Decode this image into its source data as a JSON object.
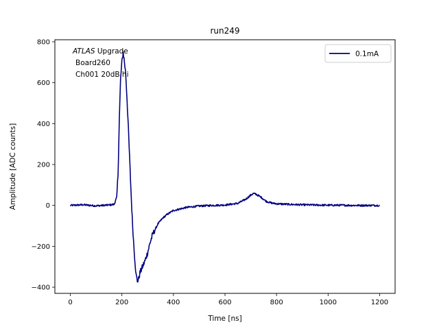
{
  "chart_data": {
    "type": "line",
    "title": "run249",
    "xlabel": "Time [ns]",
    "ylabel": "Amplitude [ADC counts]",
    "xlim": [
      -60,
      1260
    ],
    "ylim": [
      -430,
      810
    ],
    "xticks": [
      0,
      200,
      400,
      600,
      800,
      1000,
      1200
    ],
    "yticks": [
      -400,
      -200,
      0,
      200,
      400,
      600,
      800
    ],
    "grid": false,
    "legend_position": "top-right",
    "annotation": {
      "line1_italic": "ATLAS",
      "line1_rest": " Upgrade",
      "line2": "Board260",
      "line3": "Ch001 20dB hi"
    },
    "series": [
      {
        "name": "0.1mA",
        "color": "#00007f",
        "points": [
          [
            0,
            0
          ],
          [
            50,
            3
          ],
          [
            100,
            -2
          ],
          [
            150,
            2
          ],
          [
            170,
            5
          ],
          [
            180,
            40
          ],
          [
            185,
            150
          ],
          [
            190,
            420
          ],
          [
            195,
            620
          ],
          [
            200,
            700
          ],
          [
            205,
            750
          ],
          [
            210,
            700
          ],
          [
            215,
            640
          ],
          [
            220,
            520
          ],
          [
            225,
            380
          ],
          [
            230,
            230
          ],
          [
            235,
            80
          ],
          [
            240,
            -60
          ],
          [
            245,
            -170
          ],
          [
            250,
            -260
          ],
          [
            255,
            -340
          ],
          [
            260,
            -370
          ],
          [
            265,
            -360
          ],
          [
            270,
            -330
          ],
          [
            280,
            -300
          ],
          [
            290,
            -270
          ],
          [
            300,
            -230
          ],
          [
            310,
            -180
          ],
          [
            320,
            -140
          ],
          [
            340,
            -90
          ],
          [
            360,
            -60
          ],
          [
            380,
            -40
          ],
          [
            400,
            -25
          ],
          [
            450,
            -10
          ],
          [
            500,
            -3
          ],
          [
            550,
            0
          ],
          [
            600,
            2
          ],
          [
            650,
            10
          ],
          [
            680,
            30
          ],
          [
            700,
            50
          ],
          [
            710,
            58
          ],
          [
            720,
            55
          ],
          [
            740,
            40
          ],
          [
            760,
            20
          ],
          [
            780,
            12
          ],
          [
            800,
            8
          ],
          [
            850,
            5
          ],
          [
            900,
            3
          ],
          [
            950,
            2
          ],
          [
            1000,
            1
          ],
          [
            1050,
            1
          ],
          [
            1100,
            0
          ],
          [
            1150,
            0
          ],
          [
            1200,
            0
          ]
        ]
      }
    ]
  }
}
